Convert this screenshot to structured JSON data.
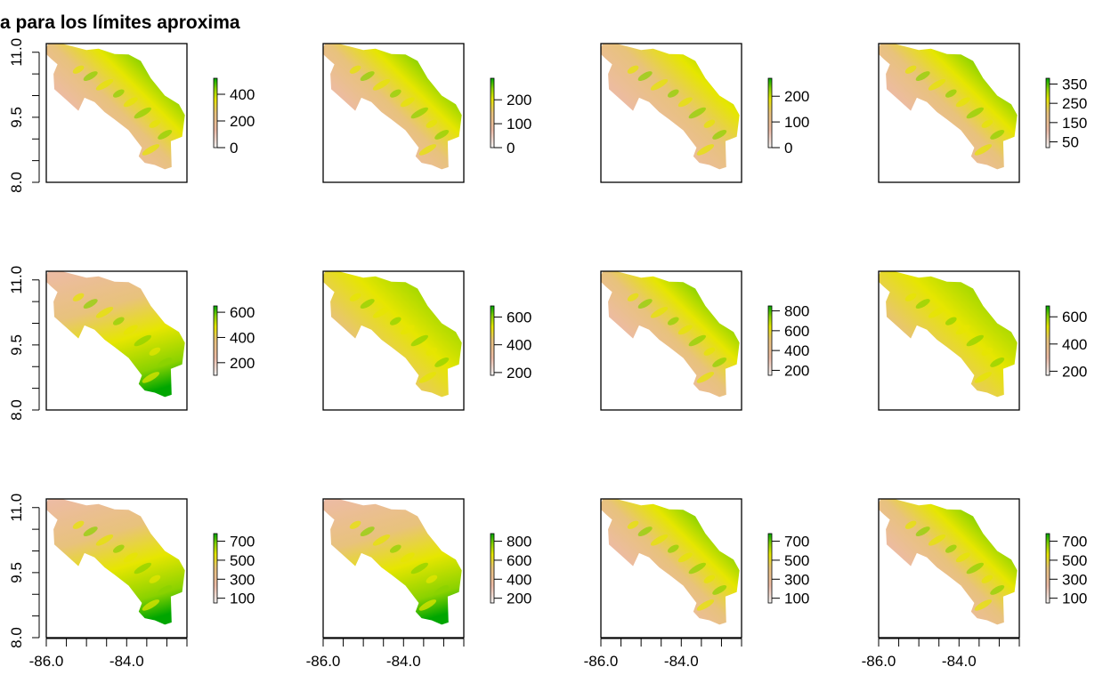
{
  "title": "a para los límites aproxima",
  "colors": {
    "ramp": [
      "#f2f2f2",
      "#edbba6",
      "#e8c27c",
      "#e6e600",
      "#8ad200",
      "#00a600"
    ],
    "frame": "#000000"
  },
  "chart_data": {
    "type": "heatmap",
    "layout": {
      "rows": 3,
      "cols": 4
    },
    "x_ticks": [
      "-86.0",
      "-84.0"
    ],
    "y_ticks": [
      "8.0",
      "9.5",
      "11.0"
    ],
    "xlim": [
      -86.0,
      -82.5
    ],
    "ylim": [
      8.0,
      11.2
    ],
    "panels": [
      {
        "legend_ticks": [
          0,
          200,
          400
        ],
        "legend_range": [
          0,
          520
        ],
        "scheme": "ne_green"
      },
      {
        "legend_ticks": [
          0,
          100,
          200
        ],
        "legend_range": [
          0,
          290
        ],
        "scheme": "ne_green"
      },
      {
        "legend_ticks": [
          0,
          100,
          200
        ],
        "legend_range": [
          0,
          270
        ],
        "scheme": "ne_green_soft"
      },
      {
        "legend_ticks": [
          50,
          150,
          250,
          350
        ],
        "legend_range": [
          20,
          380
        ],
        "scheme": "ne_green"
      },
      {
        "legend_ticks": [
          200,
          400,
          600
        ],
        "legend_range": [
          100,
          650
        ],
        "scheme": "south_green"
      },
      {
        "legend_ticks": [
          200,
          400,
          600
        ],
        "legend_range": [
          180,
          680
        ],
        "scheme": "mixed"
      },
      {
        "legend_ticks": [
          200,
          400,
          600,
          800
        ],
        "legend_range": [
          150,
          850
        ],
        "scheme": "ne_green"
      },
      {
        "legend_ticks": [
          200,
          400,
          600
        ],
        "legend_range": [
          170,
          680
        ],
        "scheme": "mixed"
      },
      {
        "legend_ticks": [
          100,
          300,
          500,
          700
        ],
        "legend_range": [
          50,
          780
        ],
        "scheme": "south_green"
      },
      {
        "legend_ticks": [
          200,
          400,
          600,
          800
        ],
        "legend_range": [
          150,
          880
        ],
        "scheme": "south_green"
      },
      {
        "legend_ticks": [
          100,
          300,
          500,
          700
        ],
        "legend_range": [
          50,
          780
        ],
        "scheme": "ne_green"
      },
      {
        "legend_ticks": [
          100,
          300,
          500,
          700
        ],
        "legend_range": [
          50,
          780
        ],
        "scheme": "ne_green"
      }
    ]
  }
}
